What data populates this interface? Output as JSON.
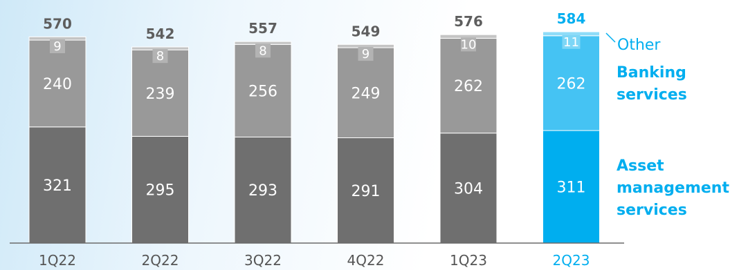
{
  "colors": {
    "grey_bottom": "#6f6f6f",
    "grey_middle": "#999999",
    "grey_top": "#c4c4c4",
    "blue_bottom": "#00aeef",
    "blue_middle": "#45c3f3",
    "blue_top": "#8fdcf8",
    "total_grey": "#5e5e5e",
    "total_blue": "#00aeef",
    "legend": "#00aeef",
    "axis": "#6a6a6a",
    "label_small": "#ffffff"
  },
  "chart_data": {
    "type": "bar",
    "stacked": true,
    "categories": [
      "1Q22",
      "2Q22",
      "3Q22",
      "4Q22",
      "1Q23",
      "2Q23"
    ],
    "highlight_index": 5,
    "series": [
      {
        "name": "Asset management services",
        "values": [
          321,
          295,
          293,
          291,
          304,
          311
        ]
      },
      {
        "name": "Banking services",
        "values": [
          240,
          239,
          256,
          249,
          262,
          262
        ]
      },
      {
        "name": "Other",
        "values": [
          9,
          8,
          8,
          9,
          10,
          11
        ]
      }
    ],
    "totals": [
      570,
      542,
      557,
      549,
      576,
      584
    ],
    "legend": {
      "placement": "right",
      "asset_line1": "Asset",
      "asset_line2": "management",
      "asset_line3": "services",
      "banking_line1": "Banking",
      "banking_line2": "services",
      "other": "Other"
    },
    "ylim": [
      0,
      584
    ],
    "grid": false
  }
}
